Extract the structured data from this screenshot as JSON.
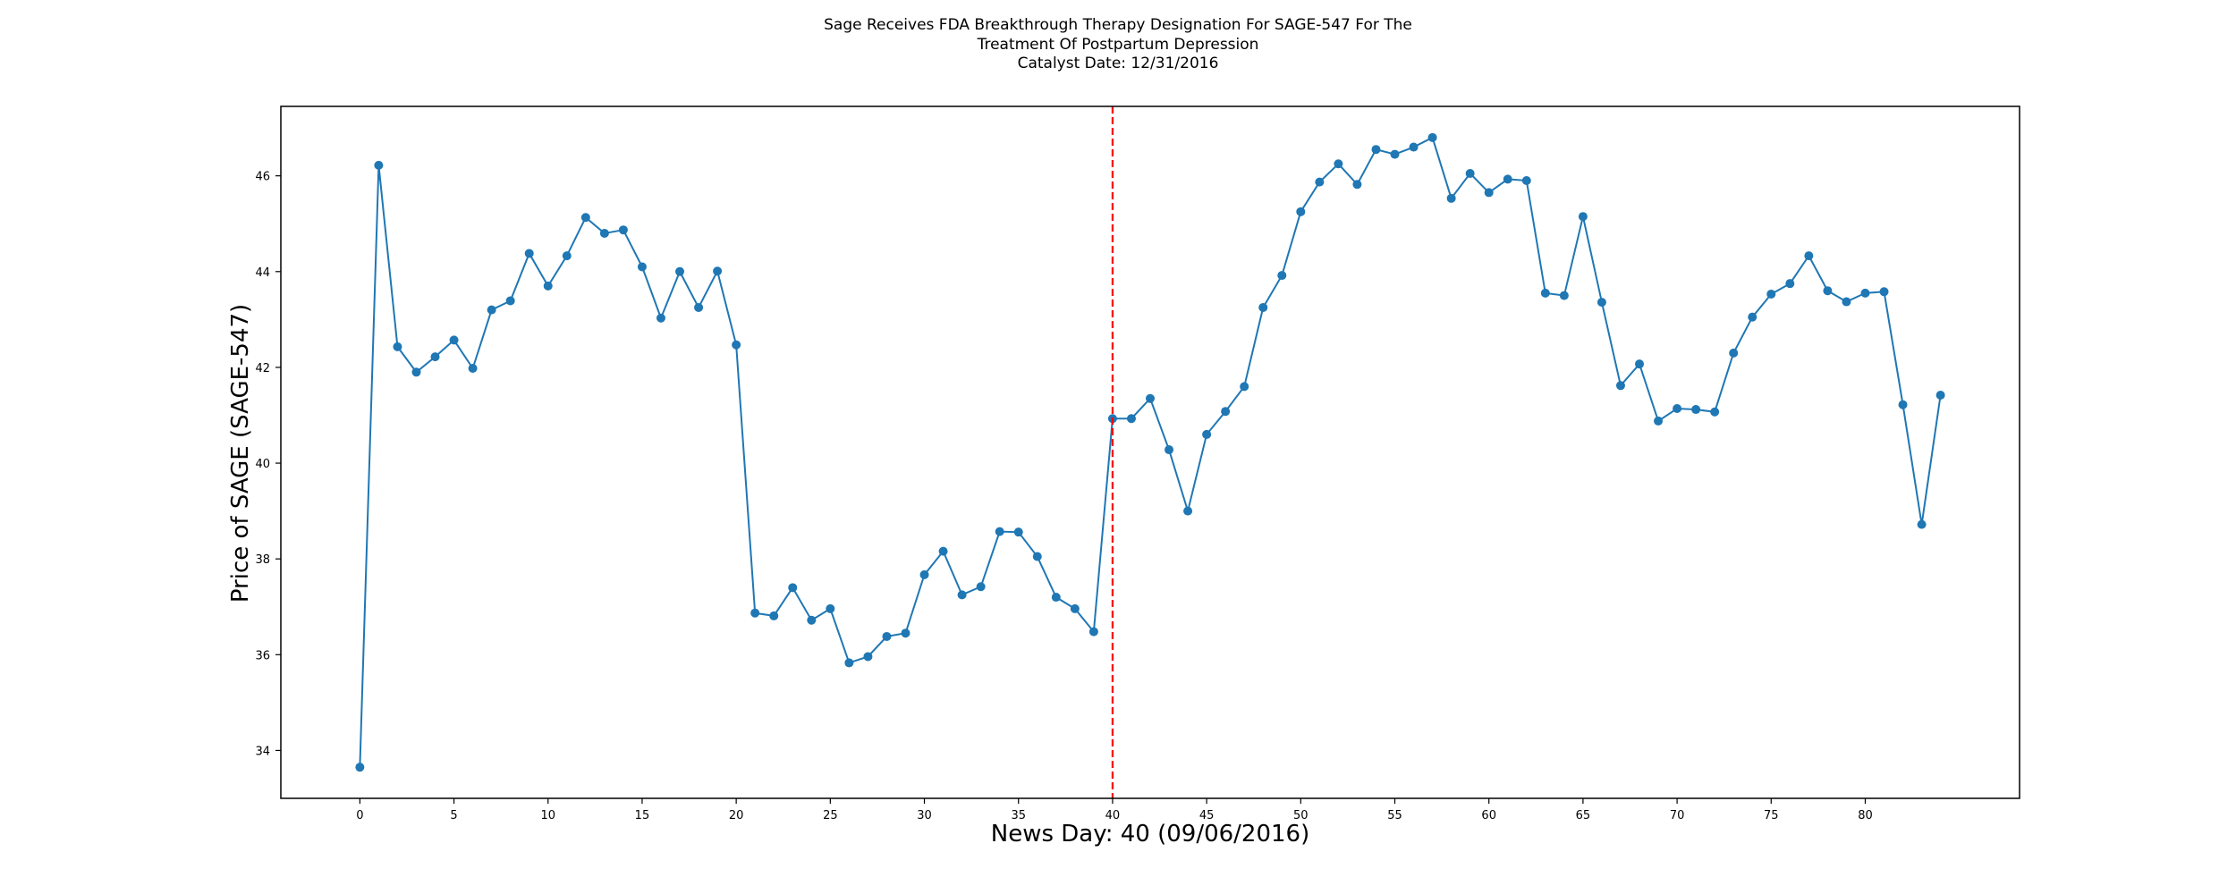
{
  "chart_data": {
    "type": "line",
    "title": [
      "Sage Receives FDA Breakthrough Therapy Designation For SAGE-547 For The",
      "Treatment Of Postpartum Depression",
      "Catalyst Date: 12/31/2016"
    ],
    "xlabel": "News Day: 40 (09/06/2016)",
    "ylabel": "Price of SAGE (SAGE-547)",
    "xlim": [
      -4.2,
      88.2
    ],
    "ylim": [
      33.0,
      47.45
    ],
    "xticks": [
      0,
      5,
      10,
      15,
      20,
      25,
      30,
      35,
      40,
      45,
      50,
      55,
      60,
      65,
      70,
      75,
      80
    ],
    "yticks": [
      34,
      36,
      38,
      40,
      42,
      44,
      46
    ],
    "grid": false,
    "colors": {
      "line": "#1f77b4",
      "marker": "#1f77b4",
      "event_line": "#ff0000"
    },
    "event_x": 40,
    "series": [
      {
        "x": [
          0,
          1,
          2,
          3,
          4,
          5,
          6,
          7,
          8,
          9,
          10,
          11,
          12,
          13,
          14,
          15,
          16,
          17,
          18,
          19,
          20,
          21,
          22,
          23,
          24,
          25,
          26,
          27,
          28,
          29,
          30,
          31,
          32,
          33,
          34,
          35,
          36,
          37,
          38,
          39,
          40,
          41,
          42,
          43,
          44,
          45,
          46,
          47,
          48,
          49,
          50,
          51,
          52,
          53,
          54,
          55,
          56,
          57,
          58,
          59,
          60,
          61,
          62,
          63,
          64,
          65,
          66,
          67,
          68,
          69,
          70,
          71,
          72,
          73,
          74,
          75,
          76,
          77,
          78,
          79,
          80,
          81,
          82,
          83,
          84
        ],
        "values": [
          33.65,
          46.22,
          42.43,
          41.9,
          42.22,
          42.57,
          41.98,
          43.2,
          43.39,
          44.38,
          43.7,
          44.33,
          45.13,
          44.8,
          44.87,
          44.1,
          43.03,
          44.0,
          43.25,
          44.01,
          42.47,
          36.87,
          36.81,
          37.4,
          36.72,
          36.96,
          35.83,
          35.96,
          36.38,
          36.45,
          37.67,
          38.16,
          37.25,
          37.42,
          38.57,
          38.56,
          38.05,
          37.2,
          36.96,
          36.48,
          40.93,
          40.93,
          41.35,
          40.28,
          39.0,
          40.6,
          41.08,
          41.6,
          43.25,
          43.92,
          45.25,
          45.87,
          46.25,
          45.82,
          46.55,
          46.45,
          46.6,
          46.8,
          45.53,
          46.05,
          45.65,
          45.93,
          45.9,
          43.55,
          43.5,
          45.15,
          43.36,
          41.62,
          42.07,
          40.88,
          41.14,
          41.12,
          41.07,
          42.3,
          43.05,
          43.53,
          43.75,
          44.33,
          43.6,
          43.37,
          43.55,
          43.58,
          41.22,
          38.72,
          41.42
        ]
      }
    ]
  }
}
